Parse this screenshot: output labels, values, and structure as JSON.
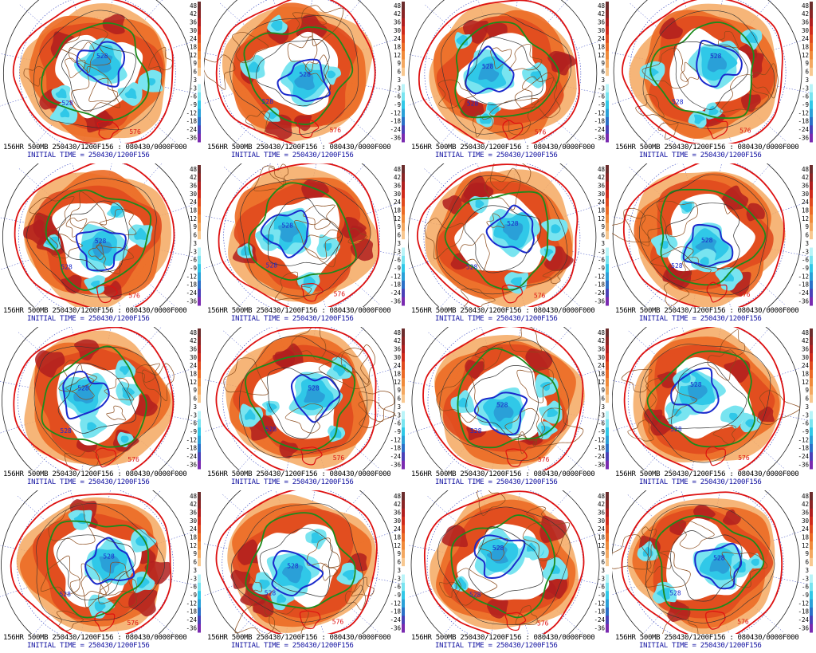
{
  "image": {
    "layout": {
      "rows": 4,
      "cols": 4
    },
    "panels": [
      {
        "caption": "156HR 500MB 250430/1200F156 : 080430/0000F000",
        "initial_time": "INITIAL TIME = 250430/1200F156",
        "labels": [
          "528",
          "576",
          "528"
        ]
      },
      {
        "caption": "156HR 500MB 250430/1200F156 : 080430/0000F000",
        "initial_time": "INITIAL TIME = 250430/1200F156",
        "labels": [
          "528",
          "576",
          "528"
        ]
      },
      {
        "caption": "156HR 500MB 250430/1200F156 : 080430/0000F000",
        "initial_time": "INITIAL TIME = 250430/1200F156",
        "labels": [
          "528",
          "576",
          "528"
        ]
      },
      {
        "caption": "156HR 500MB 250430/1200F156 : 080430/0000F000",
        "initial_time": "INITIAL TIME = 250430/1200F156",
        "labels": [
          "528",
          "576",
          "528"
        ]
      },
      {
        "caption": "156HR 500MB 250430/1200F156 : 080430/0000F000",
        "initial_time": "INITIAL TIME = 250430/1200F156",
        "labels": [
          "528",
          "576",
          "528"
        ]
      },
      {
        "caption": "156HR 500MB 250430/1200F156 : 080430/0000F000",
        "initial_time": "INITIAL TIME = 250430/1200F156",
        "labels": [
          "528",
          "576",
          "528"
        ]
      },
      {
        "caption": "156HR 500MB 250430/1200F156 : 080430/0000F000",
        "initial_time": "INITIAL TIME = 250430/1200F156",
        "labels": [
          "528",
          "576",
          "528"
        ]
      },
      {
        "caption": "156HR 500MB 250430/1200F156 : 080430/0000F000",
        "initial_time": "INITIAL TIME = 250430/1200F156",
        "labels": [
          "528",
          "576",
          "528"
        ]
      },
      {
        "caption": "156HR 500MB 250430/1200F156 : 080430/0000F000",
        "initial_time": "INITIAL TIME = 250430/1200F156",
        "labels": [
          "528",
          "576",
          "528"
        ]
      },
      {
        "caption": "156HR 500MB 250430/1200F156 : 080430/0000F000",
        "initial_time": "INITIAL TIME = 250430/1200F156",
        "labels": [
          "528",
          "576",
          "528"
        ]
      },
      {
        "caption": "156HR 500MB 250430/1200F156 : 080430/0000F000",
        "initial_time": "INITIAL TIME = 250430/1200F156",
        "labels": [
          "528",
          "576",
          "528"
        ]
      },
      {
        "caption": "156HR 500MB 250430/1200F156 : 080430/0000F000",
        "initial_time": "INITIAL TIME = 250430/1200F156",
        "labels": [
          "528",
          "576",
          "528"
        ]
      },
      {
        "caption": "156HR 500MB 250430/1200F156 : 080430/0000F000",
        "initial_time": "INITIAL TIME = 250430/1200F156",
        "labels": [
          "528",
          "576",
          "528"
        ]
      },
      {
        "caption": "156HR 500MB 250430/1200F156 : 080430/0000F000",
        "initial_time": "INITIAL TIME = 250430/1200F156",
        "labels": [
          "528",
          "576",
          "528"
        ]
      },
      {
        "caption": "156HR 500MB 250430/1200F156 : 080430/0000F000",
        "initial_time": "INITIAL TIME = 250430/1200F156",
        "labels": [
          "528",
          "576",
          "528"
        ]
      },
      {
        "caption": "156HR 500MB 250430/1200F156 : 080430/0000F000",
        "initial_time": "INITIAL TIME = 250430/1200F156",
        "labels": [
          "528",
          "576",
          "528"
        ]
      }
    ]
  },
  "colorbar": {
    "ticks": [
      "48",
      "42",
      "36",
      "30",
      "24",
      "18",
      "12",
      "9",
      "6",
      "3",
      "-3",
      "-6",
      "-9",
      "-12",
      "-18",
      "-24",
      "-36"
    ],
    "colors": [
      "#6b2c2c",
      "#8a2424",
      "#b01e1e",
      "#d02a1a",
      "#e04a1e",
      "#ec6a24",
      "#f08a3a",
      "#f4a860",
      "#f8c890",
      "#ffffff",
      "#b8f4f8",
      "#78e4f0",
      "#30c8e8",
      "#2aa0d8",
      "#2a70c8",
      "#4a40b8",
      "#7a2ab0"
    ]
  },
  "colors": {
    "contour_528": "#1a2acc",
    "contour_576": "#dd1111",
    "contour_552": "#1c8a1c",
    "coastline": "#8a4a1a",
    "latlon": "#3040c0"
  }
}
